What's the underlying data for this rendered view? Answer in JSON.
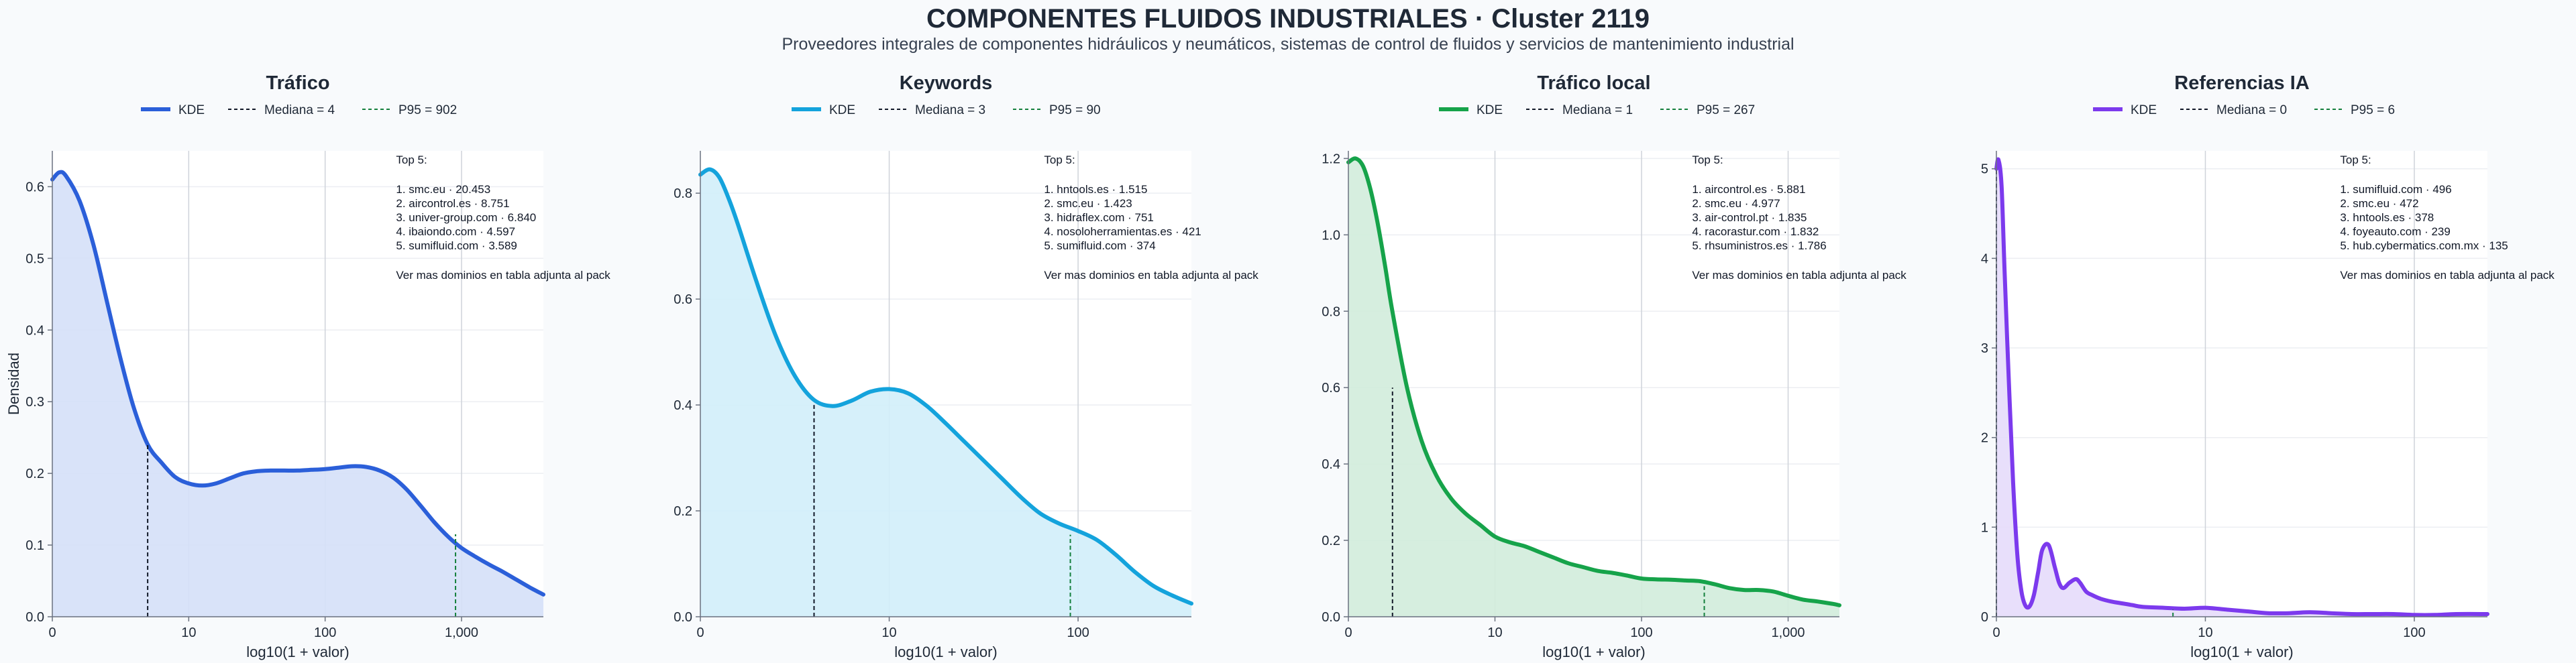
{
  "header": {
    "title": "COMPONENTES FLUIDOS INDUSTRIALES · Cluster 2119",
    "subtitle": "Proveedores integrales de componentes hidráulicos y neumáticos, sistemas de control de fluidos y servicios de mantenimiento industrial"
  },
  "chart_data": [
    {
      "type": "area",
      "title": "Tráfico",
      "xlabel": "log10(1 + valor)",
      "ylabel": "Densidad",
      "color": "#2b5fd9",
      "fill": "#d5e0f8",
      "xlim": [
        0,
        3.6
      ],
      "ylim": [
        0,
        0.65
      ],
      "x_ticks": [
        {
          "v": 0,
          "label": "0"
        },
        {
          "v": 1,
          "label": "10"
        },
        {
          "v": 2,
          "label": "100"
        },
        {
          "v": 3,
          "label": "1,000"
        }
      ],
      "y_ticks": [
        {
          "v": 0,
          "label": "0.0"
        },
        {
          "v": 0.1,
          "label": "0.1"
        },
        {
          "v": 0.2,
          "label": "0.2"
        },
        {
          "v": 0.3,
          "label": "0.3"
        },
        {
          "v": 0.4,
          "label": "0.4"
        },
        {
          "v": 0.5,
          "label": "0.5"
        },
        {
          "v": 0.6,
          "label": "0.6"
        }
      ],
      "x": [
        0,
        0.05,
        0.1,
        0.2,
        0.3,
        0.4,
        0.5,
        0.6,
        0.7,
        0.8,
        0.9,
        1.0,
        1.1,
        1.2,
        1.3,
        1.4,
        1.5,
        1.6,
        1.7,
        1.8,
        1.9,
        2.0,
        2.1,
        2.2,
        2.3,
        2.4,
        2.5,
        2.6,
        2.7,
        2.8,
        2.9,
        3.0,
        3.1,
        3.2,
        3.3,
        3.4,
        3.5,
        3.6
      ],
      "y": [
        0.61,
        0.62,
        0.615,
        0.58,
        0.52,
        0.44,
        0.36,
        0.29,
        0.24,
        0.215,
        0.195,
        0.186,
        0.183,
        0.186,
        0.193,
        0.2,
        0.203,
        0.204,
        0.204,
        0.204,
        0.205,
        0.206,
        0.208,
        0.21,
        0.209,
        0.204,
        0.194,
        0.177,
        0.155,
        0.132,
        0.112,
        0.096,
        0.084,
        0.073,
        0.063,
        0.052,
        0.041,
        0.031
      ],
      "median": {
        "x": 0.699,
        "y": 0.24,
        "label": "Mediana = 4"
      },
      "p95": {
        "x": 2.956,
        "y": 0.115,
        "label": "P95 = 902"
      },
      "legend": {
        "kde": "KDE"
      },
      "top5": {
        "heading": "Top 5:",
        "items": [
          "1. smc.eu · 20.453",
          "2. aircontrol.es · 8.751",
          "3. univer-group.com · 6.840",
          "4. ibaiondo.com · 4.597",
          "5. sumifluid.com · 3.589"
        ],
        "note": "Ver mas dominios en tabla adjunta al pack"
      }
    },
    {
      "type": "area",
      "title": "Keywords",
      "xlabel": "log10(1 + valor)",
      "ylabel": "",
      "color": "#14a3dc",
      "fill": "#d2eefa",
      "xlim": [
        0,
        2.6
      ],
      "ylim": [
        0,
        0.88
      ],
      "x_ticks": [
        {
          "v": 0,
          "label": "0"
        },
        {
          "v": 1,
          "label": "10"
        },
        {
          "v": 2,
          "label": "100"
        }
      ],
      "y_ticks": [
        {
          "v": 0,
          "label": "0.0"
        },
        {
          "v": 0.2,
          "label": "0.2"
        },
        {
          "v": 0.4,
          "label": "0.4"
        },
        {
          "v": 0.6,
          "label": "0.6"
        },
        {
          "v": 0.8,
          "label": "0.8"
        }
      ],
      "x": [
        0,
        0.05,
        0.1,
        0.15,
        0.2,
        0.3,
        0.4,
        0.5,
        0.6,
        0.7,
        0.8,
        0.9,
        1.0,
        1.1,
        1.2,
        1.3,
        1.4,
        1.5,
        1.6,
        1.7,
        1.8,
        1.9,
        2.0,
        2.1,
        2.2,
        2.3,
        2.4,
        2.5,
        2.6
      ],
      "y": [
        0.835,
        0.845,
        0.83,
        0.79,
        0.74,
        0.63,
        0.53,
        0.455,
        0.41,
        0.398,
        0.408,
        0.425,
        0.43,
        0.422,
        0.398,
        0.365,
        0.33,
        0.295,
        0.26,
        0.225,
        0.195,
        0.176,
        0.162,
        0.145,
        0.117,
        0.085,
        0.058,
        0.04,
        0.025
      ],
      "median": {
        "x": 0.602,
        "y": 0.4,
        "label": "Mediana = 3"
      },
      "p95": {
        "x": 1.959,
        "y": 0.155,
        "label": "P95 = 90"
      },
      "legend": {
        "kde": "KDE"
      },
      "top5": {
        "heading": "Top 5:",
        "items": [
          "1. hntools.es · 1.515",
          "2. smc.eu · 1.423",
          "3. hidraflex.com · 751",
          "4. nosoloherramientas.es · 421",
          "5. sumifluid.com · 374"
        ],
        "note": "Ver mas dominios en tabla adjunta al pack"
      }
    },
    {
      "type": "area",
      "title": "Tráfico local",
      "xlabel": "log10(1 + valor)",
      "ylabel": "",
      "color": "#16a34a",
      "fill": "#d1ecdb",
      "xlim": [
        0,
        3.35
      ],
      "ylim": [
        0,
        1.22
      ],
      "x_ticks": [
        {
          "v": 0,
          "label": "0"
        },
        {
          "v": 1,
          "label": "10"
        },
        {
          "v": 2,
          "label": "100"
        },
        {
          "v": 3,
          "label": "1,000"
        }
      ],
      "y_ticks": [
        {
          "v": 0,
          "label": "0.0"
        },
        {
          "v": 0.2,
          "label": "0.2"
        },
        {
          "v": 0.4,
          "label": "0.4"
        },
        {
          "v": 0.6,
          "label": "0.6"
        },
        {
          "v": 0.8,
          "label": "0.8"
        },
        {
          "v": 1.0,
          "label": "1.0"
        },
        {
          "v": 1.2,
          "label": "1.2"
        }
      ],
      "x": [
        0,
        0.05,
        0.1,
        0.15,
        0.2,
        0.25,
        0.3,
        0.4,
        0.5,
        0.6,
        0.7,
        0.8,
        0.9,
        1.0,
        1.1,
        1.2,
        1.3,
        1.4,
        1.5,
        1.6,
        1.7,
        1.8,
        1.9,
        2.0,
        2.1,
        2.2,
        2.3,
        2.4,
        2.5,
        2.6,
        2.7,
        2.8,
        2.9,
        3.0,
        3.1,
        3.2,
        3.3,
        3.35
      ],
      "y": [
        1.19,
        1.2,
        1.18,
        1.12,
        1.03,
        0.92,
        0.8,
        0.6,
        0.46,
        0.37,
        0.31,
        0.27,
        0.24,
        0.21,
        0.195,
        0.185,
        0.17,
        0.155,
        0.14,
        0.13,
        0.12,
        0.115,
        0.108,
        0.1,
        0.098,
        0.097,
        0.095,
        0.093,
        0.085,
        0.075,
        0.07,
        0.07,
        0.066,
        0.055,
        0.045,
        0.04,
        0.034,
        0.03
      ],
      "median": {
        "x": 0.301,
        "y": 0.6,
        "label": "Mediana = 1"
      },
      "p95": {
        "x": 2.428,
        "y": 0.08,
        "label": "P95 = 267"
      },
      "legend": {
        "kde": "KDE"
      },
      "top5": {
        "heading": "Top 5:",
        "items": [
          "1. aircontrol.es · 5.881",
          "2. smc.eu · 4.977",
          "3. air-control.pt · 1.835",
          "4. racorastur.com · 1.832",
          "5. rhsuministros.es · 1.786"
        ],
        "note": "Ver mas dominios en tabla adjunta al pack"
      }
    },
    {
      "type": "area",
      "title": "Referencias IA",
      "xlabel": "log10(1 + valor)",
      "ylabel": "",
      "color": "#7c3aed",
      "fill": "#e6dcfb",
      "xlim": [
        0,
        2.35
      ],
      "ylim": [
        0,
        5.2
      ],
      "x_ticks": [
        {
          "v": 0,
          "label": "0"
        },
        {
          "v": 1,
          "label": "10"
        },
        {
          "v": 2,
          "label": "100"
        }
      ],
      "y_ticks": [
        {
          "v": 0,
          "label": "0"
        },
        {
          "v": 1,
          "label": "1"
        },
        {
          "v": 2,
          "label": "2"
        },
        {
          "v": 3,
          "label": "3"
        },
        {
          "v": 4,
          "label": "4"
        },
        {
          "v": 5,
          "label": "5"
        }
      ],
      "x": [
        0,
        0.01,
        0.025,
        0.04,
        0.06,
        0.08,
        0.1,
        0.12,
        0.14,
        0.16,
        0.18,
        0.2,
        0.22,
        0.25,
        0.28,
        0.3,
        0.32,
        0.35,
        0.38,
        0.4,
        0.43,
        0.46,
        0.5,
        0.55,
        0.6,
        0.65,
        0.7,
        0.8,
        0.9,
        1.0,
        1.1,
        1.2,
        1.3,
        1.4,
        1.5,
        1.6,
        1.7,
        1.8,
        1.9,
        2.0,
        2.1,
        2.2,
        2.35
      ],
      "y": [
        5.0,
        5.1,
        4.8,
        3.8,
        2.6,
        1.5,
        0.7,
        0.28,
        0.12,
        0.12,
        0.25,
        0.5,
        0.75,
        0.8,
        0.55,
        0.38,
        0.32,
        0.38,
        0.42,
        0.38,
        0.28,
        0.24,
        0.2,
        0.17,
        0.15,
        0.13,
        0.11,
        0.1,
        0.09,
        0.1,
        0.08,
        0.06,
        0.04,
        0.04,
        0.05,
        0.04,
        0.03,
        0.03,
        0.03,
        0.02,
        0.02,
        0.03,
        0.03
      ],
      "median": {
        "x": 0,
        "y": 5.0,
        "label": "Mediana = 0"
      },
      "p95": {
        "x": 0.845,
        "y": 0.08,
        "label": "P95 = 6"
      },
      "legend": {
        "kde": "KDE"
      },
      "top5": {
        "heading": "Top 5:",
        "items": [
          "1. sumifluid.com · 496",
          "2. smc.eu · 472",
          "3. hntools.es · 378",
          "4. foyeauto.com · 239",
          "5. hub.cybermatics.com.mx · 135"
        ],
        "note": "Ver mas dominios en tabla adjunta al pack"
      }
    }
  ]
}
